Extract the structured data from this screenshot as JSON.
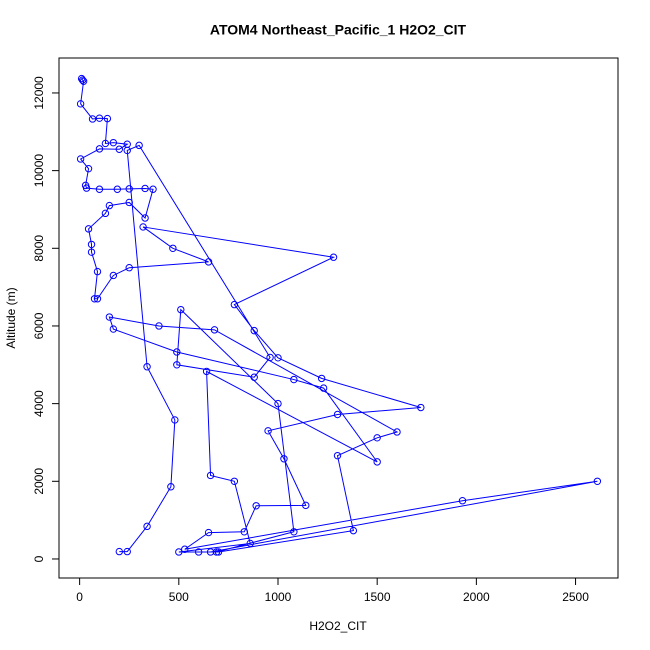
{
  "chart_data": {
    "type": "line",
    "title": "ATOM4 Northeast_Pacific_1 H2O2_CIT",
    "xlabel": "H2O2_CIT",
    "ylabel": "Altitude (m)",
    "color": "#0000ff",
    "markers": true,
    "grid": false,
    "x": [
      10,
      15,
      20,
      5,
      65,
      100,
      140,
      130,
      170,
      240,
      200,
      100,
      5,
      45,
      30,
      35,
      100,
      190,
      250,
      330,
      370,
      330,
      250,
      150,
      130,
      45,
      60,
      60,
      90,
      75,
      90,
      170,
      250,
      650,
      470,
      320,
      1280,
      780,
      880,
      1000,
      1220,
      1720,
      1300,
      950,
      1030,
      1140,
      890,
      830,
      650,
      530,
      1930,
      2610,
      660,
      700,
      1380,
      1300,
      1500,
      1600,
      680,
      400,
      150,
      170,
      490,
      1080,
      1230,
      1500,
      640,
      660,
      780,
      860,
      500,
      600,
      690,
      1080,
      1000,
      510,
      490,
      880,
      960,
      300,
      240,
      340,
      480,
      460,
      340,
      240,
      200
    ],
    "y": [
      12370,
      12330,
      12300,
      11720,
      11330,
      11350,
      11340,
      10700,
      10720,
      10680,
      10550,
      10560,
      10300,
      10050,
      9620,
      9550,
      9520,
      9520,
      9530,
      9540,
      9520,
      8780,
      9180,
      9100,
      8900,
      8500,
      8100,
      7900,
      7400,
      6700,
      6700,
      7300,
      7500,
      7650,
      8000,
      8550,
      7770,
      6550,
      5880,
      5180,
      4650,
      3900,
      3720,
      3300,
      2580,
      1380,
      1370,
      700,
      680,
      250,
      1500,
      2000,
      180,
      180,
      730,
      2660,
      3120,
      3270,
      5900,
      6000,
      6230,
      5920,
      5330,
      4620,
      4400,
      2500,
      4830,
      2150,
      2000,
      400,
      180,
      180,
      180,
      700,
      4000,
      6420,
      5000,
      4680,
      5190,
      10650,
      10520,
      4950,
      3580,
      1860,
      840,
      190,
      190
    ],
    "xlim": [
      -104,
      2714
    ],
    "ylim": [
      -490,
      12900
    ],
    "xticks": [
      0,
      500,
      1000,
      1500,
      2000,
      2500
    ],
    "yticks": [
      0,
      2000,
      4000,
      6000,
      8000,
      10000,
      12000
    ]
  }
}
